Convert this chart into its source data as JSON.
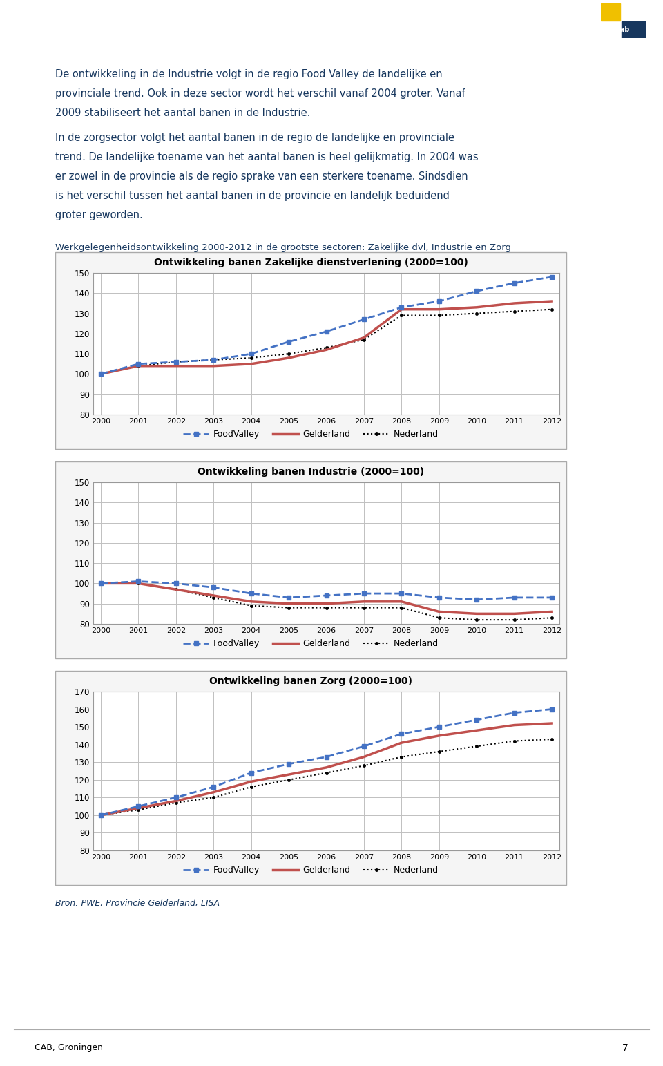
{
  "years": [
    2000,
    2001,
    2002,
    2003,
    2004,
    2005,
    2006,
    2007,
    2008,
    2009,
    2010,
    2011,
    2012
  ],
  "chart1": {
    "title": "Ontwikkeling banen Zakelijke dienstverlening (2000=100)",
    "ylim": [
      80,
      150
    ],
    "yticks": [
      80,
      90,
      100,
      110,
      120,
      130,
      140,
      150
    ],
    "foodvalley": [
      100,
      105,
      106,
      107,
      110,
      116,
      121,
      127,
      133,
      136,
      141,
      145,
      148
    ],
    "gelderland": [
      100,
      104,
      104,
      104,
      105,
      108,
      112,
      118,
      132,
      132,
      133,
      135,
      136
    ],
    "nederland": [
      100,
      104,
      106,
      107,
      108,
      110,
      113,
      117,
      129,
      129,
      130,
      131,
      132
    ]
  },
  "chart2": {
    "title": "Ontwikkeling banen Industrie (2000=100)",
    "ylim": [
      80,
      150
    ],
    "yticks": [
      80,
      90,
      100,
      110,
      120,
      130,
      140,
      150
    ],
    "foodvalley": [
      100,
      101,
      100,
      98,
      95,
      93,
      94,
      95,
      95,
      93,
      92,
      93,
      93
    ],
    "gelderland": [
      100,
      100,
      97,
      94,
      91,
      90,
      90,
      91,
      91,
      86,
      85,
      85,
      86
    ],
    "nederland": [
      100,
      100,
      97,
      93,
      89,
      88,
      88,
      88,
      88,
      83,
      82,
      82,
      83
    ]
  },
  "chart3": {
    "title": "Ontwikkeling banen Zorg (2000=100)",
    "ylim": [
      80,
      170
    ],
    "yticks": [
      80,
      90,
      100,
      110,
      120,
      130,
      140,
      150,
      160,
      170
    ],
    "foodvalley": [
      100,
      105,
      110,
      116,
      124,
      129,
      133,
      139,
      146,
      150,
      154,
      158,
      160
    ],
    "gelderland": [
      100,
      104,
      108,
      113,
      119,
      123,
      127,
      133,
      141,
      145,
      148,
      151,
      152
    ],
    "nederland": [
      100,
      103,
      107,
      110,
      116,
      120,
      124,
      128,
      133,
      136,
      139,
      142,
      143
    ]
  },
  "foodvalley_color": "#4472C4",
  "gelderland_color": "#C0504D",
  "nederland_color": "#000000",
  "grid_color": "#C0C0C0",
  "box_edge_color": "#AAAAAA",
  "title_text": "Werkgelegenheidsontwikkeling 2000-2012 in de grootste sectoren: Zakelijke dvl, Industrie en Zorg",
  "source_text": "Bron: PWE, Provincie Gelderland, LISA",
  "page_text": "CAB, Groningen",
  "page_number": "7",
  "main_text_color": "#17375E",
  "para1": "De ontwikkeling in de Industrie volgt in de regio Food Valley de landelijke en provinciale trend. Ook in deze sector wordt het verschil vanaf 2004 groter. Vanaf 2009 stabiliseert het aantal banen in de Industrie.",
  "para2": "In de zorgsector volgt het aantal banen in de regio de landelijke en provinciale trend. De landelijke toename van het aantal banen is heel gelijkmatig. In 2004 was er zowel in de provincie als de regio sprake van een sterkere toename. Sindsdien is het verschil tussen het aantal banen in de provincie en landelijk beduidend groter geworden."
}
